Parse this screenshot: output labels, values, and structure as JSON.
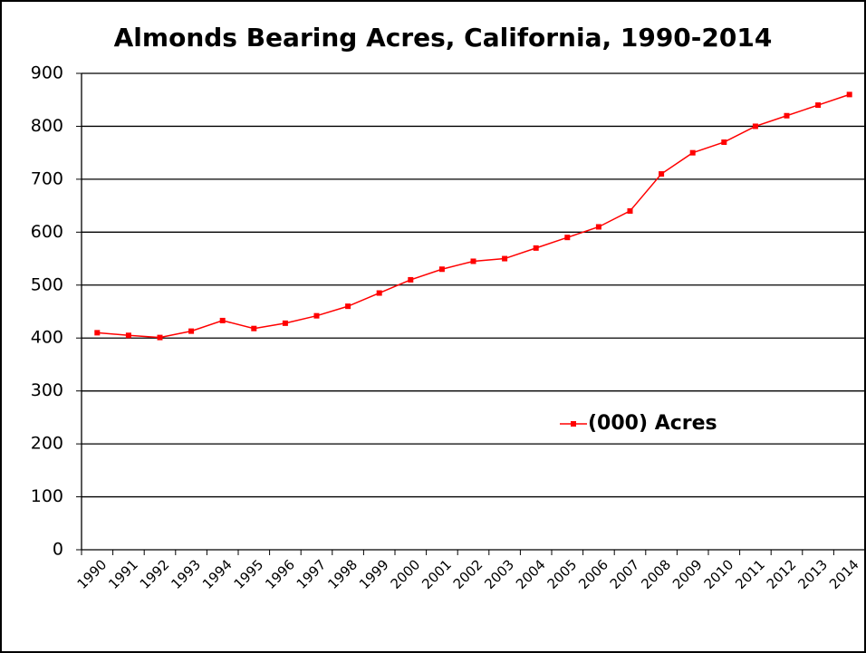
{
  "chart_data": {
    "type": "line",
    "title": "Almonds Bearing Acres, California, 1990-2014",
    "categories": [
      "1990",
      "1991",
      "1992",
      "1993",
      "1994",
      "1995",
      "1996",
      "1997",
      "1998",
      "1999",
      "2000",
      "2001",
      "2002",
      "2003",
      "2004",
      "2005",
      "2006",
      "2007",
      "2008",
      "2009",
      "2010",
      "2011",
      "2012",
      "2013",
      "2014"
    ],
    "series": [
      {
        "name": "(000) Acres",
        "color": "#ff0000",
        "values": [
          410,
          405,
          401,
          413,
          433,
          418,
          428,
          442,
          460,
          485,
          510,
          530,
          545,
          550,
          570,
          590,
          610,
          640,
          710,
          750,
          770,
          800,
          820,
          840,
          860
        ]
      }
    ],
    "ylim": [
      0,
      900
    ],
    "yticks": [
      0,
      100,
      200,
      300,
      400,
      500,
      600,
      700,
      800,
      900
    ],
    "grid": true
  }
}
